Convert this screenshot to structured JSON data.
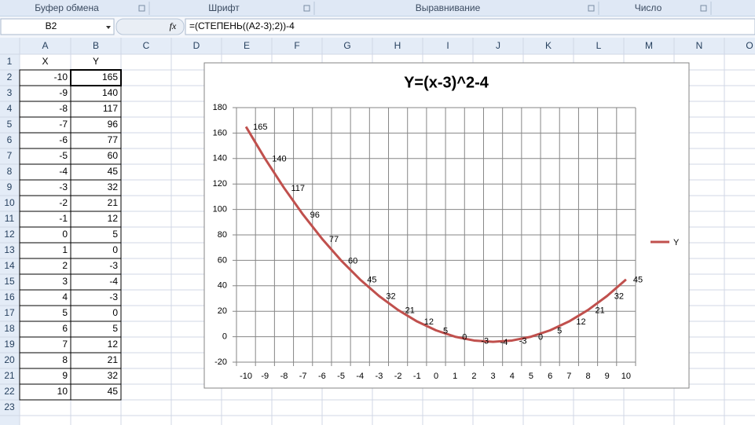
{
  "ribbon": {
    "groups": [
      "Буфер обмена",
      "Шрифт",
      "Выравнивание",
      "Число"
    ]
  },
  "formula_bar": {
    "name_box": "B2",
    "fx": "fx",
    "formula": "=(СТЕПЕНЬ((A2-3);2))-4"
  },
  "sheet": {
    "columns": [
      "A",
      "B",
      "C",
      "D",
      "E",
      "F",
      "G",
      "H",
      "I",
      "J",
      "K",
      "L",
      "M",
      "N",
      "O"
    ],
    "rows": [
      1,
      2,
      3,
      4,
      5,
      6,
      7,
      8,
      9,
      10,
      11,
      12,
      13,
      14,
      15,
      16,
      17,
      18,
      19,
      20,
      21,
      22,
      23
    ],
    "cells": [
      [
        "X",
        "Y"
      ],
      [
        -10,
        165
      ],
      [
        -9,
        140
      ],
      [
        -8,
        117
      ],
      [
        -7,
        96
      ],
      [
        -6,
        77
      ],
      [
        -5,
        60
      ],
      [
        -4,
        45
      ],
      [
        -3,
        32
      ],
      [
        -2,
        21
      ],
      [
        -1,
        12
      ],
      [
        0,
        5
      ],
      [
        1,
        0
      ],
      [
        2,
        -3
      ],
      [
        3,
        -4
      ],
      [
        4,
        -3
      ],
      [
        5,
        0
      ],
      [
        6,
        5
      ],
      [
        7,
        12
      ],
      [
        8,
        21
      ],
      [
        9,
        32
      ],
      [
        10,
        45
      ]
    ]
  },
  "chart_data": {
    "type": "line",
    "title": "Y=(x-3)^2-4",
    "categories": [
      -10,
      -9,
      -8,
      -7,
      -6,
      -5,
      -4,
      -3,
      -2,
      -1,
      0,
      1,
      2,
      3,
      4,
      5,
      6,
      7,
      8,
      9,
      10
    ],
    "series": [
      {
        "name": "Y",
        "color": "#c0504d",
        "values": [
          165,
          140,
          117,
          96,
          77,
          60,
          45,
          32,
          21,
          12,
          5,
          0,
          -3,
          -4,
          -3,
          0,
          5,
          12,
          21,
          32,
          45
        ]
      }
    ],
    "ylim": [
      -20,
      180
    ],
    "yticks": [
      -20,
      0,
      20,
      40,
      60,
      80,
      100,
      120,
      140,
      160,
      180
    ],
    "grid": true,
    "data_labels": true,
    "legend": "right"
  }
}
